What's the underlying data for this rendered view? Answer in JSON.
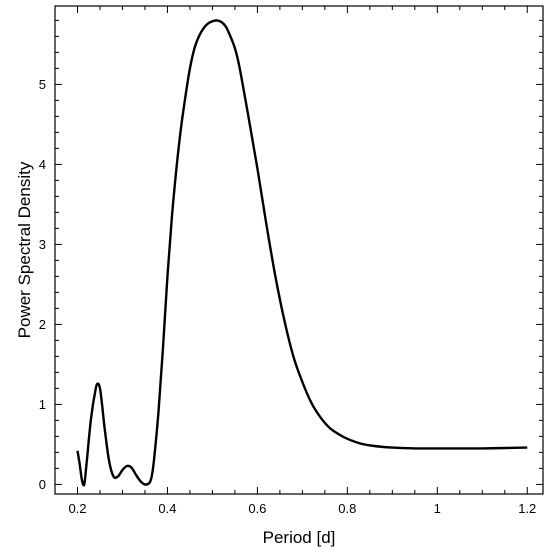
{
  "chart_data": {
    "type": "line",
    "title": "",
    "xlabel": "Period [d]",
    "ylabel": "Power Spectral Density",
    "xlim": [
      0.15,
      1.235
    ],
    "ylim": [
      -0.12,
      5.98
    ],
    "x_ticks": [
      0.2,
      0.4,
      0.6,
      0.8,
      1.0,
      1.2
    ],
    "x_tick_labels": [
      "0.2",
      "0.4",
      "0.6",
      "0.8",
      "1",
      "1.2"
    ],
    "y_ticks": [
      0,
      1,
      2,
      3,
      4,
      5
    ],
    "y_tick_labels": [
      "0",
      "1",
      "2",
      "3",
      "4",
      "5"
    ],
    "grid": false,
    "series": [
      {
        "color": "#000000",
        "x": [
          0.2,
          0.205,
          0.21,
          0.215,
          0.22,
          0.23,
          0.24,
          0.245,
          0.25,
          0.255,
          0.26,
          0.27,
          0.28,
          0.29,
          0.3,
          0.31,
          0.32,
          0.33,
          0.34,
          0.35,
          0.36,
          0.365,
          0.37,
          0.38,
          0.39,
          0.4,
          0.41,
          0.42,
          0.43,
          0.44,
          0.45,
          0.46,
          0.47,
          0.48,
          0.49,
          0.5,
          0.51,
          0.52,
          0.53,
          0.54,
          0.55,
          0.56,
          0.58,
          0.6,
          0.62,
          0.64,
          0.66,
          0.68,
          0.7,
          0.72,
          0.74,
          0.76,
          0.78,
          0.8,
          0.83,
          0.86,
          0.9,
          0.95,
          1.0,
          1.05,
          1.1,
          1.15,
          1.2
        ],
        "y": [
          0.42,
          0.25,
          0.05,
          0.0,
          0.25,
          0.82,
          1.18,
          1.26,
          1.2,
          0.98,
          0.72,
          0.3,
          0.1,
          0.1,
          0.18,
          0.23,
          0.21,
          0.12,
          0.04,
          0.0,
          0.02,
          0.1,
          0.3,
          0.9,
          1.7,
          2.6,
          3.35,
          3.95,
          4.45,
          4.85,
          5.2,
          5.45,
          5.6,
          5.7,
          5.76,
          5.79,
          5.8,
          5.78,
          5.72,
          5.6,
          5.45,
          5.22,
          4.6,
          3.95,
          3.25,
          2.6,
          2.05,
          1.6,
          1.28,
          1.02,
          0.84,
          0.71,
          0.63,
          0.57,
          0.51,
          0.48,
          0.46,
          0.45,
          0.45,
          0.45,
          0.45,
          0.455,
          0.46
        ]
      }
    ]
  }
}
